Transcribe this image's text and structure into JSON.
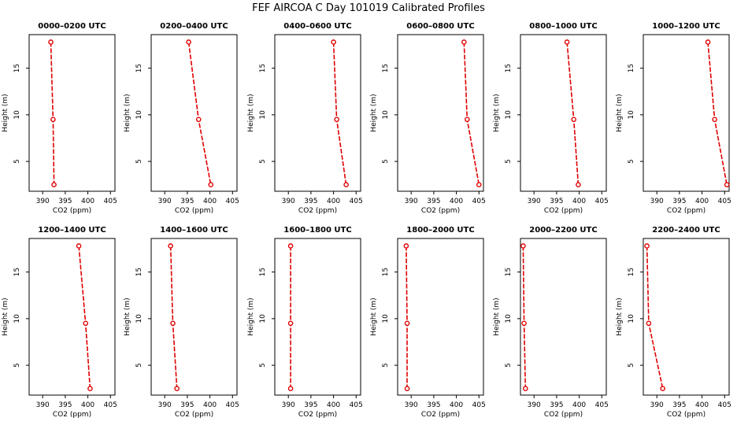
{
  "title": "FEF AIRCOA C  Day 101019  Calibrated Profiles",
  "chart_data": {
    "type": "line",
    "xlabel": "CO2 (ppm)",
    "ylabel": "Height (m)",
    "xlim": [
      387,
      406
    ],
    "ylim": [
      1.8,
      18.6
    ],
    "xticks": [
      390,
      395,
      400,
      405
    ],
    "yticks": [
      5,
      10,
      15
    ],
    "heights": [
      17.8,
      9.5,
      2.5
    ],
    "panels": [
      {
        "title": "0000–0200 UTC",
        "co2": [
          391.8,
          392.3,
          392.5
        ]
      },
      {
        "title": "0200–0400 UTC",
        "co2": [
          395.3,
          397.5,
          400.2
        ]
      },
      {
        "title": "0400–0600 UTC",
        "co2": [
          400.0,
          400.7,
          402.8
        ]
      },
      {
        "title": "0600–0800 UTC",
        "co2": [
          401.7,
          402.4,
          405.0
        ]
      },
      {
        "title": "0800–1000 UTC",
        "co2": [
          397.3,
          398.8,
          399.8
        ]
      },
      {
        "title": "1000–1200 UTC",
        "co2": [
          401.3,
          402.8,
          405.5
        ]
      },
      {
        "title": "1200–1400 UTC",
        "co2": [
          398.0,
          399.5,
          400.5
        ]
      },
      {
        "title": "1400–1600 UTC",
        "co2": [
          391.3,
          391.8,
          392.7
        ]
      },
      {
        "title": "1600–1800 UTC",
        "co2": [
          390.5,
          390.5,
          390.5
        ]
      },
      {
        "title": "1800–2000 UTC",
        "co2": [
          388.9,
          389.1,
          389.1
        ]
      },
      {
        "title": "2000–2200 UTC",
        "co2": [
          387.6,
          387.8,
          388.1
        ]
      },
      {
        "title": "2200–2400 UTC",
        "co2": [
          387.8,
          388.2,
          391.3
        ]
      }
    ]
  }
}
